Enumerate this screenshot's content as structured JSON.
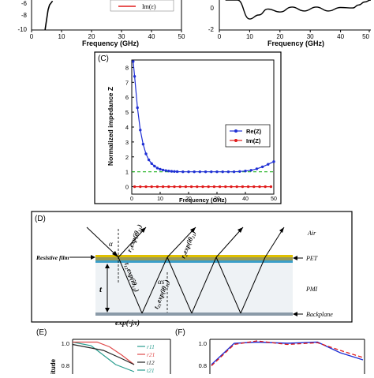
{
  "panelA": {
    "xlabel": "Frequency (GHz)",
    "yticks": [
      "-6",
      "-8",
      "-10"
    ],
    "xticks": [
      "0",
      "10",
      "20",
      "30",
      "40",
      "50"
    ],
    "legend_label": "Im(ε)",
    "colors": {
      "im": "#e01b1b",
      "curve": "#000000"
    }
  },
  "panelB": {
    "xlabel": "Frequency (GHz)",
    "yticks": [
      "0",
      "-2"
    ],
    "xticks": [
      "0",
      "10",
      "20",
      "30",
      "40",
      "50"
    ]
  },
  "panelC": {
    "tag": "(C)",
    "xlabel": "Frequency (GHz)",
    "ylabel": "Normalized impedance Z",
    "legend": [
      "Re(Z)",
      "Im(Z)"
    ],
    "colors": {
      "re": "#1f2fd4",
      "im": "#e01b1b",
      "ref": "#22b222"
    },
    "xticks": [
      "0",
      "10",
      "20",
      "30",
      "40",
      "50"
    ],
    "yticks": [
      "0",
      "1",
      "2",
      "3",
      "4",
      "5",
      "6",
      "7",
      "8"
    ]
  },
  "panelD": {
    "tag": "(D)",
    "labels": {
      "resistive_film": "Resistive film",
      "air": "Air",
      "pet": "PET",
      "pmi": "PMI",
      "backplane": "Backplane",
      "t": "t",
      "alpha": "α",
      "alpha_s": "αs",
      "r1": "r₁exp(iθ₁₁)",
      "r2": "r₂exp(iθ₂₁)",
      "t12": "t₁₂exp(iθ₁₂)",
      "t21": "t₂₁exp(iθ₂₁)",
      "exp_pi": "exp(-jπ)"
    }
  },
  "panelE": {
    "tag": "(E)",
    "ylabel": "itude",
    "yticks": [
      "1.0",
      "0.8"
    ],
    "legend": [
      "r11",
      "r21",
      "t12",
      "t21"
    ],
    "legend_colors": [
      "#2a9d8f",
      "#e04a4a",
      "#222222",
      "#2a9d8f"
    ]
  },
  "panelF": {
    "tag": "(F)",
    "yticks": [
      "1.0",
      "0.8"
    ]
  },
  "chart_data": [
    {
      "type": "line",
      "panel": "A",
      "xlabel": "Frequency (GHz)",
      "xlim": [
        0,
        50
      ],
      "ylim": [
        -10,
        -4
      ],
      "series": [
        {
          "name": "Im(ε)",
          "x": [
            4.5,
            5,
            5.5,
            6,
            7
          ],
          "y": [
            -10,
            -8,
            -6,
            -5,
            -4.2
          ]
        }
      ]
    },
    {
      "type": "line",
      "panel": "B",
      "xlabel": "Frequency (GHz)",
      "xlim": [
        0,
        50
      ],
      "ylim": [
        -2,
        1
      ],
      "series": [
        {
          "x": [
            2,
            6,
            10,
            13,
            16,
            20,
            24,
            28,
            32,
            36,
            40,
            44,
            46,
            48,
            50
          ],
          "y": [
            1,
            1,
            -0.9,
            -0.5,
            0.1,
            -0.2,
            0.3,
            -0.1,
            0.3,
            -0.1,
            0.25,
            0.2,
            0.5,
            0.8,
            1
          ]
        }
      ]
    },
    {
      "type": "line",
      "panel": "C",
      "xlabel": "Frequency (GHz)",
      "ylabel": "Normalized impedance Z",
      "xlim": [
        0,
        50
      ],
      "ylim": [
        -0.5,
        8.5
      ],
      "series": [
        {
          "name": "Re(Z)",
          "x": [
            0.5,
            1,
            2,
            3,
            4,
            5,
            6,
            7,
            8,
            9,
            10,
            11,
            12,
            13,
            14,
            15,
            16,
            18,
            20,
            22,
            24,
            26,
            28,
            30,
            32,
            34,
            36,
            38,
            40,
            42,
            44,
            46,
            48,
            50
          ],
          "y": [
            8.4,
            7.4,
            5.3,
            3.8,
            2.85,
            2.2,
            1.8,
            1.55,
            1.38,
            1.25,
            1.17,
            1.12,
            1.08,
            1.05,
            1.03,
            1.02,
            1.01,
            1.0,
            1.0,
            1.0,
            1.0,
            1.0,
            1.0,
            1.0,
            1.0,
            1.0,
            1.0,
            1.02,
            1.05,
            1.1,
            1.2,
            1.33,
            1.5,
            1.68
          ]
        },
        {
          "name": "Im(Z)",
          "x": [
            1,
            3,
            5,
            7,
            9,
            11,
            13,
            15,
            17,
            19,
            21,
            23,
            25,
            27,
            29,
            31,
            33,
            35,
            37,
            39,
            41,
            43,
            45,
            47,
            49
          ],
          "y": [
            0,
            0,
            0,
            0,
            0,
            0,
            0,
            0,
            0,
            0,
            0,
            0,
            0,
            0,
            0,
            0,
            0,
            0,
            0,
            0,
            0,
            0,
            0,
            0,
            0
          ]
        },
        {
          "x": [
            0,
            50
          ],
          "y": [
            1,
            1
          ]
        }
      ]
    },
    {
      "type": "line",
      "panel": "E",
      "ylim": [
        0.7,
        1.0
      ],
      "series": [
        {
          "name": "r11",
          "x": [
            0,
            0.3,
            0.5,
            0.7,
            1
          ],
          "y": [
            0.99,
            0.96,
            0.88,
            0.8,
            0.74
          ]
        },
        {
          "name": "r21",
          "x": [
            0,
            0.4,
            0.6,
            0.8,
            1
          ],
          "y": [
            0.99,
            0.99,
            0.95,
            0.88,
            0.8
          ]
        },
        {
          "name": "t12",
          "x": [
            0,
            0.5,
            0.8,
            1
          ],
          "y": [
            0.97,
            0.92,
            0.85,
            0.8
          ]
        }
      ]
    },
    {
      "type": "line",
      "panel": "F",
      "ylim": [
        0.7,
        1.0
      ],
      "series": [
        {
          "x": [
            0,
            0.15,
            0.3,
            0.5,
            0.7,
            0.85,
            1
          ],
          "y": [
            0.8,
            0.98,
            0.99,
            0.98,
            0.99,
            0.9,
            0.84
          ]
        },
        {
          "x": [
            0,
            0.15,
            0.3,
            0.5,
            0.7,
            0.85,
            1
          ],
          "y": [
            0.79,
            0.97,
            1.0,
            0.97,
            0.985,
            0.92,
            0.86
          ]
        }
      ]
    }
  ]
}
